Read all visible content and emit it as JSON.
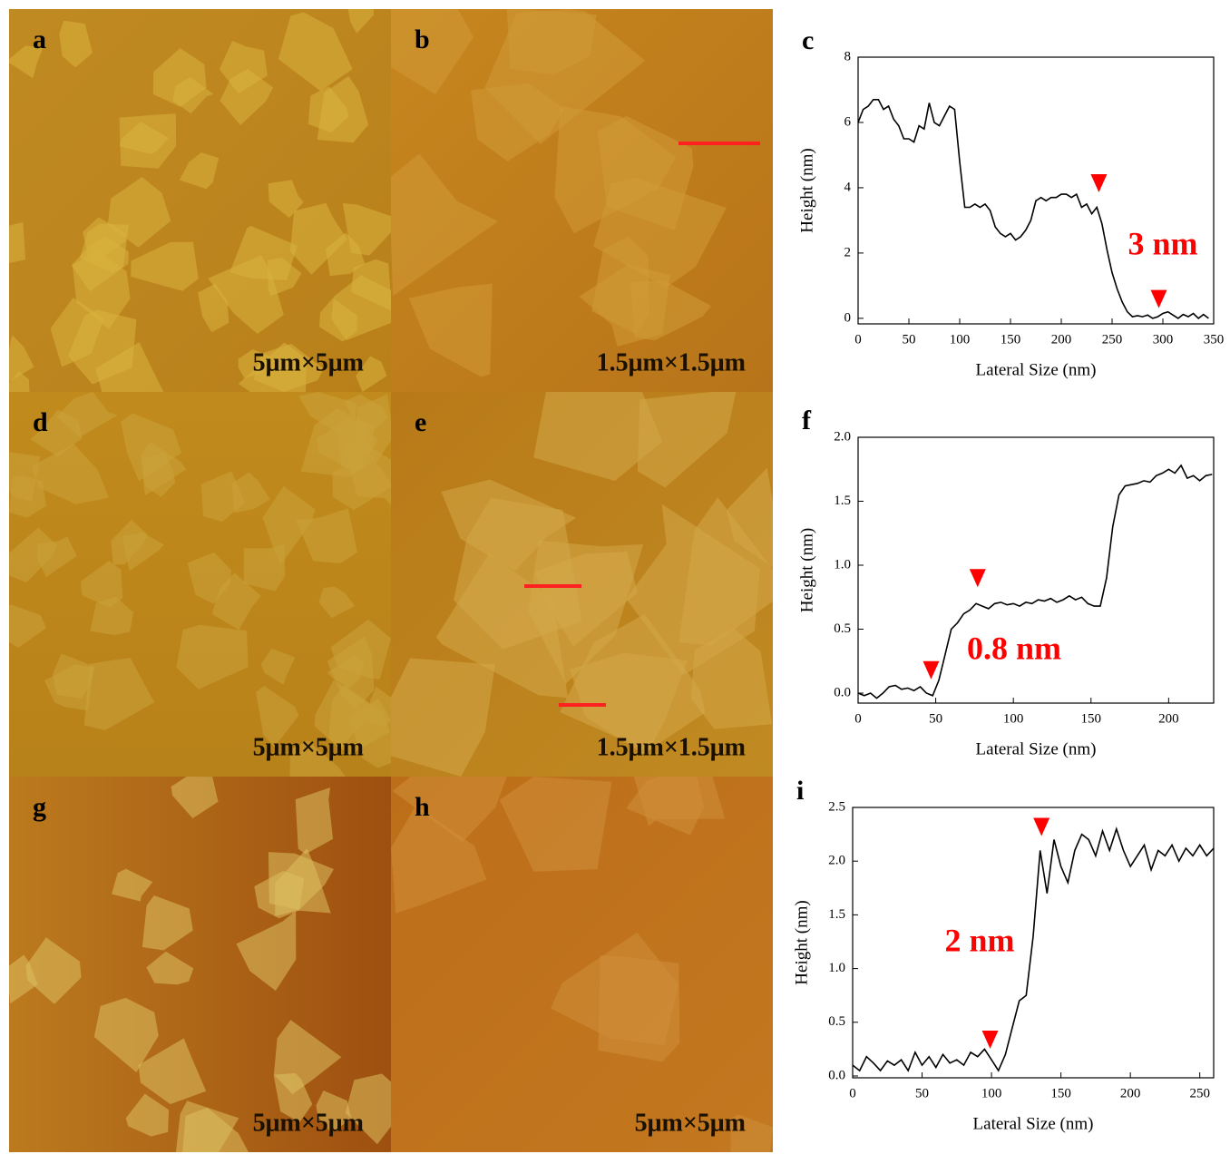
{
  "images": [
    {
      "label": "a",
      "scale": "5μm×5μm"
    },
    {
      "label": "b",
      "scale": "1.5μm×1.5μm"
    },
    {
      "label": "d",
      "scale": "5μm×5μm"
    },
    {
      "label": "e",
      "scale": "1.5μm×1.5μm"
    },
    {
      "label": "g",
      "scale": "5μm×5μm"
    },
    {
      "label": "h",
      "scale": "5μm×5μm"
    }
  ],
  "chart_data": [
    {
      "type": "line",
      "label": "c",
      "xlabel": "Lateral Size (nm)",
      "ylabel": "Height (nm)",
      "color": "#000000",
      "xlim": [
        0,
        350
      ],
      "ylim": [
        -0.17,
        8
      ],
      "xticks": [
        0,
        50,
        100,
        150,
        200,
        250,
        300,
        350
      ],
      "yticks": [
        0,
        2,
        4,
        6,
        8
      ],
      "x": [
        0,
        5,
        10,
        15,
        20,
        25,
        30,
        35,
        40,
        45,
        50,
        55,
        60,
        65,
        70,
        75,
        80,
        85,
        90,
        95,
        100,
        105,
        110,
        115,
        120,
        125,
        130,
        135,
        140,
        145,
        150,
        155,
        160,
        165,
        170,
        175,
        180,
        185,
        190,
        195,
        200,
        205,
        210,
        215,
        220,
        225,
        230,
        235,
        240,
        245,
        250,
        255,
        260,
        265,
        270,
        275,
        280,
        285,
        290,
        295,
        300,
        305,
        310,
        315,
        320,
        325,
        330,
        335,
        340,
        345
      ],
      "values": [
        6.0,
        6.4,
        6.5,
        6.7,
        6.7,
        6.4,
        6.5,
        6.1,
        5.9,
        5.5,
        5.5,
        5.4,
        5.9,
        5.8,
        6.6,
        6.0,
        5.9,
        6.2,
        6.5,
        6.4,
        4.8,
        3.4,
        3.4,
        3.5,
        3.4,
        3.5,
        3.3,
        2.8,
        2.6,
        2.5,
        2.6,
        2.4,
        2.5,
        2.7,
        3.0,
        3.6,
        3.7,
        3.6,
        3.7,
        3.7,
        3.8,
        3.8,
        3.7,
        3.8,
        3.4,
        3.5,
        3.2,
        3.4,
        2.9,
        2.1,
        1.4,
        0.9,
        0.5,
        0.2,
        0.05,
        0.08,
        0.05,
        0.1,
        0.0,
        0.05,
        0.15,
        0.2,
        0.1,
        0.0,
        0.12,
        0.05,
        0.15,
        0.0,
        0.12,
        0.0
      ],
      "markers": [
        {
          "x": 237,
          "y": 3.75
        },
        {
          "x": 296,
          "y": 0.2
        }
      ],
      "marker_color": "#ff0000",
      "annotation": "3 nm"
    },
    {
      "type": "line",
      "label": "f",
      "xlabel": "Lateral Size (nm)",
      "ylabel": "Height (nm)",
      "color": "#000000",
      "xlim": [
        0,
        229
      ],
      "ylim": [
        -0.078,
        2.0
      ],
      "xticks": [
        0,
        50,
        100,
        150,
        200
      ],
      "yticks": [
        {
          "value": 0,
          "label": "0.0"
        },
        0.5,
        {
          "value": 1,
          "label": "1.0"
        },
        1.5,
        {
          "value": 2,
          "label": "2.0"
        }
      ],
      "x": [
        0,
        4,
        8,
        12,
        16,
        20,
        24,
        28,
        32,
        36,
        40,
        44,
        48,
        52,
        56,
        60,
        64,
        68,
        72,
        76,
        80,
        84,
        88,
        92,
        96,
        100,
        104,
        108,
        112,
        116,
        120,
        124,
        128,
        132,
        136,
        140,
        144,
        148,
        152,
        156,
        160,
        164,
        168,
        172,
        176,
        180,
        184,
        188,
        192,
        196,
        200,
        204,
        208,
        212,
        216,
        220,
        224,
        228
      ],
      "values": [
        0.0,
        -0.02,
        0.0,
        -0.04,
        0.0,
        0.05,
        0.06,
        0.03,
        0.04,
        0.02,
        0.05,
        0.0,
        -0.02,
        0.1,
        0.3,
        0.5,
        0.55,
        0.62,
        0.65,
        0.7,
        0.68,
        0.66,
        0.7,
        0.71,
        0.69,
        0.7,
        0.68,
        0.71,
        0.7,
        0.73,
        0.72,
        0.74,
        0.71,
        0.73,
        0.76,
        0.73,
        0.75,
        0.7,
        0.68,
        0.68,
        0.9,
        1.3,
        1.55,
        1.62,
        1.63,
        1.64,
        1.66,
        1.65,
        1.7,
        1.72,
        1.75,
        1.72,
        1.78,
        1.68,
        1.7,
        1.66,
        1.7,
        1.71
      ],
      "markers": [
        {
          "x": 47,
          "y": 0.08
        },
        {
          "x": 77,
          "y": 0.8
        }
      ],
      "marker_color": "#ff0000",
      "annotation": "0.8 nm"
    },
    {
      "type": "line",
      "label": "i",
      "xlabel": "Lateral Size (nm)",
      "ylabel": "Height (nm)",
      "color": "#000000",
      "xlim": [
        0,
        260
      ],
      "ylim": [
        -0.017,
        2.5
      ],
      "xticks": [
        0,
        50,
        100,
        150,
        200,
        250
      ],
      "yticks": [
        {
          "value": 0,
          "label": "0.0"
        },
        0.5,
        {
          "value": 1,
          "label": "1.0"
        },
        1.5,
        {
          "value": 2,
          "label": "2.0"
        },
        2.5
      ],
      "x": [
        0,
        5,
        10,
        15,
        20,
        25,
        30,
        35,
        40,
        45,
        50,
        55,
        60,
        65,
        70,
        75,
        80,
        85,
        90,
        95,
        100,
        105,
        110,
        115,
        120,
        125,
        130,
        135,
        140,
        145,
        150,
        155,
        160,
        165,
        170,
        175,
        180,
        185,
        190,
        195,
        200,
        205,
        210,
        215,
        220,
        225,
        230,
        235,
        240,
        245,
        250,
        255,
        260
      ],
      "values": [
        0.1,
        0.05,
        0.18,
        0.12,
        0.05,
        0.14,
        0.1,
        0.15,
        0.05,
        0.22,
        0.1,
        0.18,
        0.08,
        0.2,
        0.12,
        0.15,
        0.1,
        0.22,
        0.18,
        0.25,
        0.15,
        0.05,
        0.2,
        0.45,
        0.7,
        0.75,
        1.3,
        2.1,
        1.7,
        2.2,
        1.95,
        1.8,
        2.1,
        2.25,
        2.2,
        2.05,
        2.28,
        2.1,
        2.3,
        2.1,
        1.95,
        2.05,
        2.15,
        1.92,
        2.1,
        2.05,
        2.15,
        2.0,
        2.12,
        2.05,
        2.15,
        2.05,
        2.12
      ],
      "markers": [
        {
          "x": 99,
          "y": 0.22
        },
        {
          "x": 136,
          "y": 2.2
        }
      ],
      "marker_color": "#ff0000",
      "annotation": "2 nm"
    }
  ]
}
